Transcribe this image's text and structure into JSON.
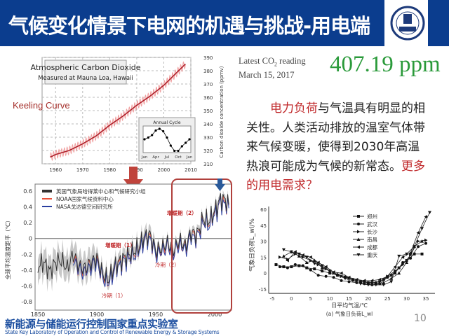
{
  "header": {
    "title": "气候变化情景下电网的机遇与挑战-用电端",
    "logo_text": "RESS",
    "colors": {
      "bar": "#0b3d8e"
    }
  },
  "co2_chart": {
    "title": "Atmospheric Carbon Dioxide",
    "subtitle": "Measured at Mauna Loa, Hawaii",
    "ylabel": "Carbon dioxide concentration (ppmv)",
    "xticks": [
      "1960",
      "1970",
      "1980",
      "1990",
      "2000",
      "2010"
    ],
    "yticks": [
      "310",
      "320",
      "330",
      "340",
      "350",
      "360",
      "370",
      "380",
      "390"
    ],
    "annotation": "Keeling Curve",
    "series": {
      "x": [
        1958,
        1960,
        1965,
        1970,
        1975,
        1980,
        1985,
        1990,
        1995,
        2000,
        2005,
        2008
      ],
      "y": [
        315,
        317,
        320,
        325,
        331,
        339,
        346,
        354,
        361,
        369,
        379,
        385
      ]
    },
    "inset": {
      "title": "Annual Cycle",
      "xticks": [
        "Jan",
        "Apr",
        "Jul",
        "Oct",
        "Jan"
      ],
      "values": [
        0,
        0.5,
        1.2,
        2.5,
        3,
        2.3,
        0.5,
        -1.8,
        -3.3,
        -3.3,
        -2,
        -1,
        0
      ]
    }
  },
  "co2_reading": {
    "label_line1": "Latest CO",
    "label_sub": "2",
    "label_line1_end": " reading",
    "label_line2": "March 15, 2017",
    "value": "407.19 ppm",
    "color": "#2a9a3a"
  },
  "paragraph": {
    "red1": "电力负荷",
    "text1": "与气温具有明显的相关性。人类活动排放的温室气体带来气候变暖，使得到2030年高温热浪可能成为气候的新常态。",
    "red2": "更多的用电需求？"
  },
  "temp_chart": {
    "ylabel": "全球平均温度距平（℃）",
    "xticks": [
      "1850",
      "1900",
      "1950",
      "2000"
    ],
    "yticks": [
      "0.6",
      "0.4",
      "0.2",
      "0",
      "-0.2",
      "-0.4",
      "-0.6",
      "-0.8"
    ],
    "legend": [
      "英国气象局哈得莱中心和气候研究小组",
      "NOAA国家气候资料中心",
      "NASA戈达德空间研究所"
    ],
    "annotations": [
      "增暖期（2）",
      "增暖期（1）",
      "冷期（2）",
      "冷期（1）"
    ],
    "series": {
      "x": [
        1850,
        1855,
        1860,
        1865,
        1870,
        1875,
        1880,
        1885,
        1890,
        1895,
        1900,
        1905,
        1910,
        1915,
        1920,
        1925,
        1930,
        1935,
        1940,
        1945,
        1950,
        1955,
        1960,
        1965,
        1970,
        1975,
        1980,
        1985,
        1990,
        1995,
        2000,
        2005,
        2010,
        2012
      ],
      "y": [
        -0.35,
        -0.3,
        -0.42,
        -0.3,
        -0.28,
        -0.38,
        -0.2,
        -0.35,
        -0.38,
        -0.3,
        -0.25,
        -0.45,
        -0.52,
        -0.35,
        -0.28,
        -0.22,
        -0.18,
        -0.12,
        0.02,
        0.05,
        -0.15,
        -0.12,
        -0.05,
        -0.15,
        -0.02,
        -0.1,
        0.08,
        0.05,
        0.25,
        0.22,
        0.35,
        0.5,
        0.48,
        0.42
      ]
    },
    "colors": [
      "#333333",
      "#e8503a",
      "#2a3ea0"
    ]
  },
  "load_chart": {
    "ylabel": "气象日负荷L_wl/%",
    "xlabel": "日平均气温/℃",
    "caption": "(a) 气象日负荷L_wl",
    "xticks": [
      "-5",
      "0",
      "5",
      "10",
      "15",
      "20",
      "25",
      "30",
      "35"
    ],
    "yticks": [
      "60",
      "45",
      "30",
      "15",
      "0",
      "-15"
    ],
    "series": [
      {
        "name": "郑州",
        "points": [
          [
            -4,
            8
          ],
          [
            -2,
            6
          ],
          [
            0,
            6
          ],
          [
            2,
            7
          ],
          [
            4,
            5
          ],
          [
            6,
            4
          ],
          [
            8,
            2
          ],
          [
            10,
            0
          ],
          [
            12,
            -2
          ],
          [
            14,
            -4
          ],
          [
            16,
            -6
          ],
          [
            18,
            -8
          ],
          [
            20,
            -9
          ],
          [
            22,
            -9
          ],
          [
            24,
            -6
          ],
          [
            26,
            -2
          ],
          [
            28,
            5
          ],
          [
            30,
            12
          ],
          [
            32,
            18
          ],
          [
            34,
            18
          ]
        ]
      },
      {
        "name": "武汉",
        "points": [
          [
            -3,
            6
          ],
          [
            -1,
            5
          ],
          [
            1,
            8
          ],
          [
            3,
            7
          ],
          [
            5,
            3
          ],
          [
            7,
            -2
          ],
          [
            9,
            -3
          ],
          [
            11,
            -4
          ],
          [
            13,
            -7
          ],
          [
            15,
            -8
          ],
          [
            17,
            -9
          ],
          [
            19,
            -10
          ],
          [
            21,
            -11
          ],
          [
            23,
            -10
          ],
          [
            25,
            -4
          ],
          [
            27,
            0
          ],
          [
            29,
            10
          ],
          [
            31,
            14
          ],
          [
            33,
            25
          ],
          [
            35,
            28
          ]
        ]
      },
      {
        "name": "长沙",
        "points": [
          [
            -3,
            15
          ],
          [
            -1,
            13
          ],
          [
            1,
            18
          ],
          [
            3,
            15
          ],
          [
            5,
            12
          ],
          [
            7,
            8
          ],
          [
            9,
            4
          ],
          [
            11,
            0
          ],
          [
            13,
            -3
          ],
          [
            15,
            -5
          ],
          [
            17,
            -7
          ],
          [
            19,
            -8
          ],
          [
            21,
            -9
          ],
          [
            23,
            -8
          ],
          [
            25,
            -3
          ],
          [
            27,
            2
          ],
          [
            29,
            8
          ],
          [
            31,
            17
          ],
          [
            33,
            30
          ],
          [
            35,
            31
          ]
        ]
      },
      {
        "name": "南昌",
        "points": [
          [
            -2,
            16
          ],
          [
            0,
            20
          ],
          [
            2,
            16
          ],
          [
            4,
            10
          ],
          [
            6,
            12
          ],
          [
            8,
            5
          ],
          [
            10,
            2
          ],
          [
            12,
            -1
          ],
          [
            14,
            -3
          ],
          [
            16,
            -6
          ],
          [
            18,
            -8
          ],
          [
            20,
            -9
          ],
          [
            22,
            -10
          ],
          [
            24,
            -9
          ],
          [
            26,
            -5
          ],
          [
            28,
            0
          ],
          [
            30,
            10
          ],
          [
            32,
            25
          ],
          [
            34,
            30
          ]
        ]
      },
      {
        "name": "成都",
        "points": [
          [
            -1,
            12
          ],
          [
            1,
            20
          ],
          [
            3,
            17
          ],
          [
            5,
            15
          ],
          [
            7,
            10
          ],
          [
            9,
            6
          ],
          [
            11,
            1
          ],
          [
            13,
            0
          ],
          [
            15,
            -4
          ],
          [
            17,
            -6
          ],
          [
            19,
            -7
          ],
          [
            21,
            -7
          ],
          [
            23,
            -6
          ],
          [
            25,
            -3
          ],
          [
            27,
            6
          ],
          [
            29,
            15
          ],
          [
            31,
            19
          ],
          [
            33,
            38
          ],
          [
            35,
            53
          ]
        ]
      },
      {
        "name": "重庆",
        "points": [
          [
            -2,
            22
          ],
          [
            0,
            20
          ],
          [
            2,
            18
          ],
          [
            4,
            15
          ],
          [
            6,
            9
          ],
          [
            8,
            7
          ],
          [
            10,
            2
          ],
          [
            12,
            -2
          ],
          [
            14,
            -5
          ],
          [
            16,
            -7
          ],
          [
            18,
            -10
          ],
          [
            20,
            -11
          ],
          [
            22,
            -11
          ],
          [
            24,
            -11
          ],
          [
            26,
            -8
          ],
          [
            28,
            16
          ],
          [
            30,
            18
          ],
          [
            32,
            25
          ],
          [
            34,
            42
          ],
          [
            36,
            57
          ]
        ]
      }
    ]
  },
  "footer": {
    "cn": "新能源与储能运行控制国家重点实验室",
    "en": "State Key Laboratory of Operation and Control of Renewable Energy & Storage Systems"
  },
  "page_number": "10"
}
